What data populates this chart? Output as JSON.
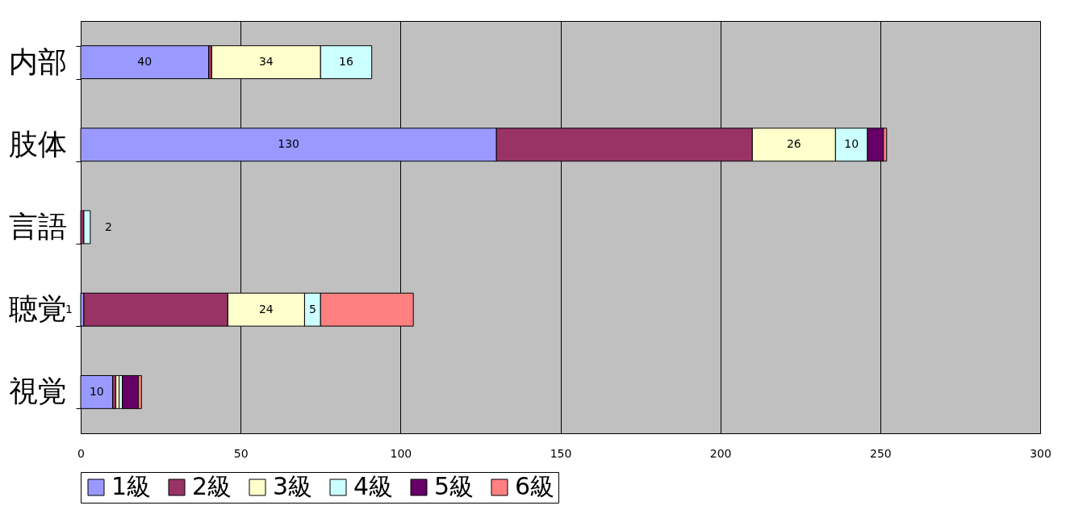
{
  "chart_data": {
    "type": "bar",
    "orientation": "horizontal",
    "stacked": true,
    "categories": [
      "内部",
      "肢体",
      "言語",
      "聴覚",
      "視覚"
    ],
    "series": [
      {
        "name": "1級",
        "color": "#9999ff",
        "values": [
          40,
          130,
          null,
          1,
          10
        ],
        "value_labels": [
          "40",
          "130",
          null,
          "1",
          "10"
        ]
      },
      {
        "name": "2級",
        "color": "#993366",
        "values": [
          1,
          80,
          1,
          45,
          1
        ],
        "value_labels": [
          null,
          null,
          null,
          null,
          null
        ]
      },
      {
        "name": "3級",
        "color": "#ffffcc",
        "values": [
          34,
          26,
          null,
          24,
          1
        ],
        "value_labels": [
          "34",
          "26",
          null,
          "24",
          null
        ]
      },
      {
        "name": "4級",
        "color": "#ccffff",
        "values": [
          16,
          10,
          2,
          5,
          1
        ],
        "value_labels": [
          "16",
          "10",
          "2",
          "5",
          null
        ]
      },
      {
        "name": "5級",
        "color": "#660066",
        "values": [
          null,
          5,
          null,
          null,
          5
        ],
        "value_labels": [
          null,
          null,
          null,
          null,
          null
        ]
      },
      {
        "name": "6級",
        "color": "#ff8080",
        "values": [
          null,
          1,
          null,
          29,
          1
        ],
        "value_labels": [
          null,
          null,
          null,
          null,
          null
        ]
      }
    ],
    "xlim": [
      0,
      300
    ],
    "xticks": [
      0,
      50,
      100,
      150,
      200,
      250,
      300
    ],
    "grid": "x",
    "legend": "bottom"
  }
}
